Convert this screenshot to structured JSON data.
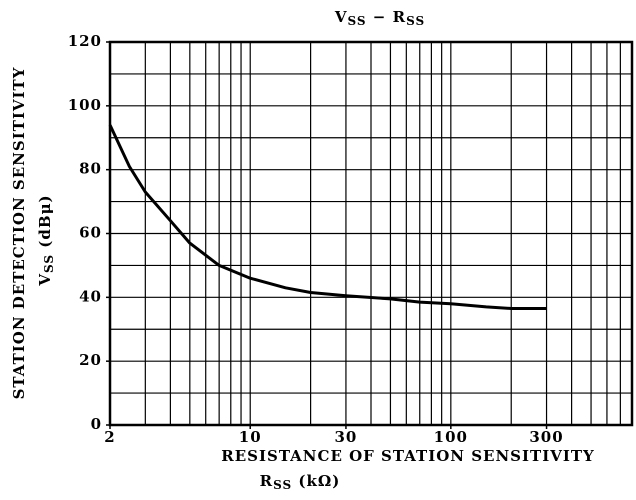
{
  "chart_data": {
    "type": "line",
    "title": [
      {
        "text": "V"
      },
      {
        "text": "SS",
        "sub": true
      },
      {
        "text": " − R"
      },
      {
        "text": "SS",
        "sub": true
      }
    ],
    "y_label": "STATION DETECTION SENSITIVITY",
    "y_label_2": [
      {
        "text": "V"
      },
      {
        "text": "SS",
        "sub": true
      },
      {
        "text": " (dBμ)"
      }
    ],
    "x_label": "RESISTANCE OF STATION SENSITIVITY",
    "x_label_2": [
      {
        "text": "R"
      },
      {
        "text": "SS",
        "sub": true
      },
      {
        "text": "  (kΩ)"
      }
    ],
    "x_log": true,
    "xlim": [
      2,
      800
    ],
    "xticks": [
      2,
      10,
      30,
      100,
      300
    ],
    "xgrid": [
      3,
      4,
      5,
      6,
      7,
      8,
      9,
      10,
      20,
      30,
      40,
      50,
      60,
      70,
      80,
      90,
      100,
      200,
      300,
      400,
      500,
      600,
      700
    ],
    "ylim": [
      0,
      120
    ],
    "yticks": [
      0,
      20,
      40,
      60,
      80,
      100,
      120
    ],
    "ygrid": [
      10,
      20,
      30,
      40,
      50,
      60,
      70,
      80,
      90,
      100,
      110
    ],
    "grid": true,
    "color": "#000000",
    "x": [
      2,
      2.5,
      3,
      4,
      5,
      7,
      10,
      15,
      20,
      30,
      50,
      70,
      100,
      150,
      200,
      300
    ],
    "values": [
      94,
      81,
      73,
      64,
      57,
      50,
      46,
      43,
      41.5,
      40.5,
      39.5,
      38.5,
      38,
      37,
      36.5,
      36.5
    ]
  }
}
